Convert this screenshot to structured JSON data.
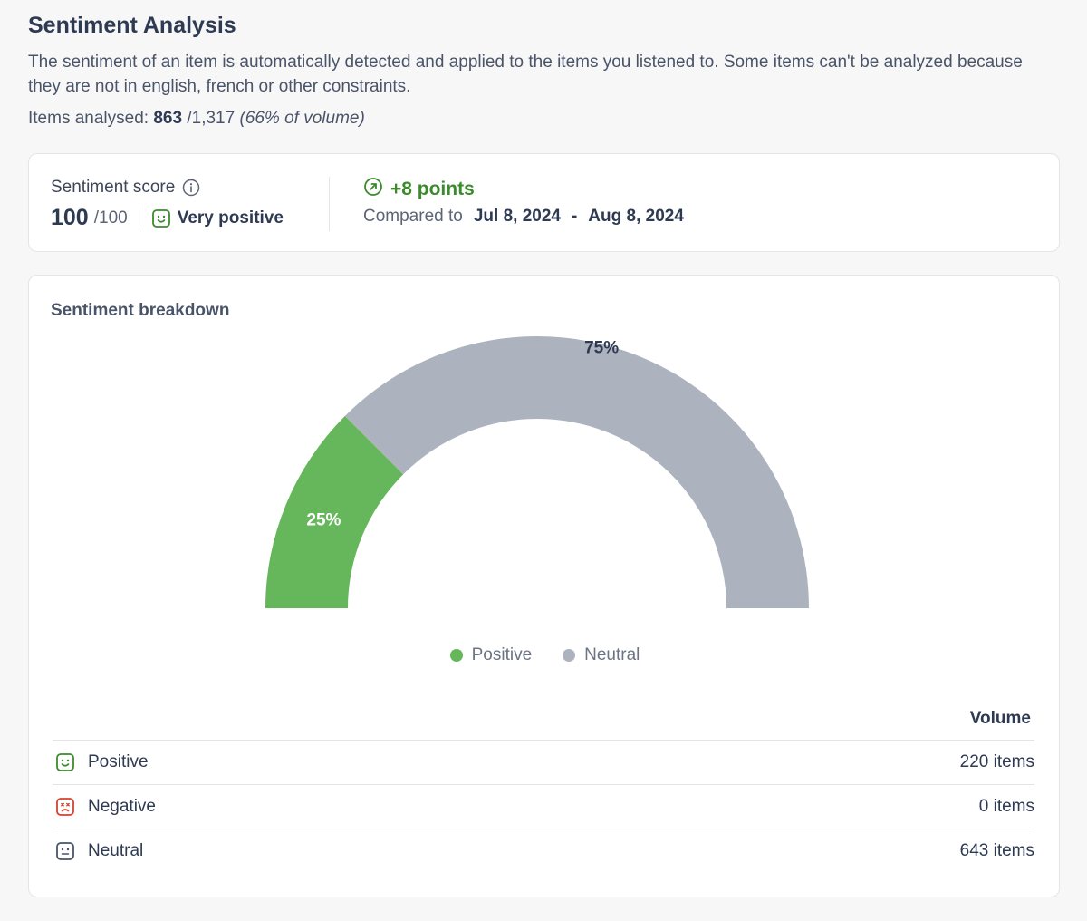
{
  "header": {
    "title": "Sentiment Analysis",
    "description": "The sentiment of an item is automatically detected and applied to the items you listened to. Some items can't be analyzed because they are not in english, french or other constraints.",
    "items_label": "Items analysed:",
    "items_analysed": "863",
    "items_total": "/1,317",
    "items_percent": "(66% of volume)"
  },
  "score": {
    "label": "Sentiment score",
    "value": "100",
    "max": "/100",
    "sentiment_label": "Very positive",
    "change": "+8 points",
    "compared_label": "Compared to",
    "range_start": "Jul 8, 2024",
    "range_sep": "-",
    "range_end": "Aug 8, 2024",
    "icons": {
      "info": "info-icon",
      "smile": "smile-icon",
      "trend": "arrow-up-right-circle-icon"
    },
    "colors": {
      "positive_change": "#3b8a2c"
    }
  },
  "breakdown": {
    "title": "Sentiment breakdown",
    "legend": [
      {
        "name": "Positive",
        "color": "#66b75c"
      },
      {
        "name": "Neutral",
        "color": "#adb3be"
      }
    ],
    "volume_header": "Volume",
    "rows": [
      {
        "label": "Positive",
        "value": "220 items",
        "icon": "smile-icon",
        "color": "#3b8a2c"
      },
      {
        "label": "Negative",
        "value": "0 items",
        "icon": "frown-icon",
        "color": "#d4432f"
      },
      {
        "label": "Neutral",
        "value": "643 items",
        "icon": "neutral-face-icon",
        "color": "#4a5468"
      }
    ]
  },
  "chart_data": {
    "type": "pie",
    "shape": "half-donut",
    "title": "",
    "slices": [
      {
        "name": "Positive",
        "value": 25,
        "label": "25%",
        "color": "#66b75c"
      },
      {
        "name": "Neutral",
        "value": 75,
        "label": "75%",
        "color": "#adb3be"
      }
    ]
  }
}
